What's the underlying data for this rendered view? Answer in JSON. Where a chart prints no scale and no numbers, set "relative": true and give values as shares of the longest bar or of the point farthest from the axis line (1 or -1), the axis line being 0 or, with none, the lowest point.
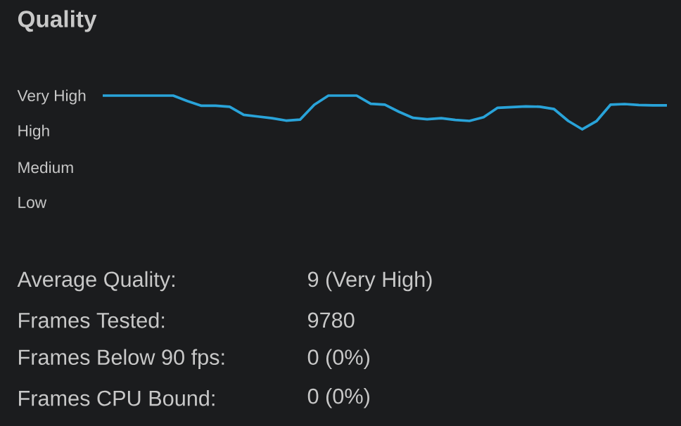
{
  "chart_data": {
    "type": "line",
    "title": "Quality",
    "relative": true,
    "categories": [
      null,
      null,
      null,
      null,
      null,
      null,
      null,
      null,
      null,
      null,
      null,
      null,
      null,
      null,
      null,
      null,
      null,
      null,
      null,
      null,
      null,
      null,
      null,
      null,
      null,
      null,
      null,
      null,
      null,
      null,
      null,
      null,
      null,
      null,
      null,
      null,
      null,
      null,
      null,
      null,
      null
    ],
    "series": [
      {
        "color": "#29a3d9",
        "values": [
          1,
          1,
          1,
          1,
          1,
          1,
          0.84,
          0.7,
          0.7,
          0.67,
          0.43,
          0.38,
          0.33,
          0.26,
          0.29,
          0.73,
          1,
          1,
          1,
          0.76,
          0.73,
          0.52,
          0.34,
          0.3,
          0.33,
          0.28,
          0.25,
          0.36,
          0.64,
          0.66,
          0.68,
          0.67,
          0.6,
          0.25,
          0,
          0.24,
          0.73,
          0.75,
          0.72,
          0.71,
          0.71
        ]
      }
    ],
    "tick_labels": false,
    "annotations": [
      "Very High",
      "High",
      "Medium",
      "Low",
      "Average Quality:",
      "9 (Very High)",
      "Frames Tested:",
      "9780",
      "Frames Below 90 fps:",
      "0 (0%)",
      "Frames CPU Bound:",
      "0 (0%)"
    ]
  }
}
